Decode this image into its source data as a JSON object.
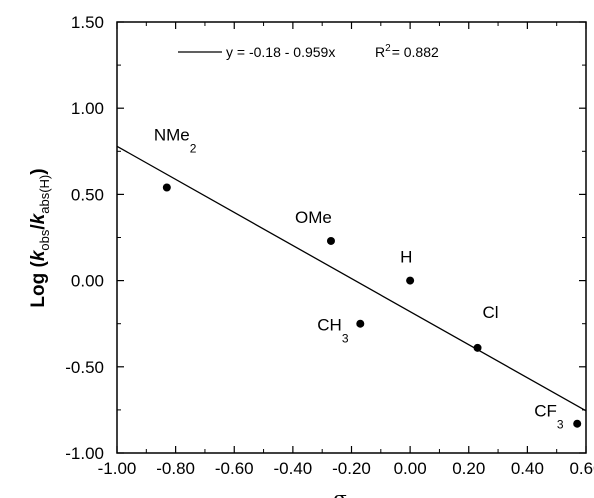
{
  "chart_data": {
    "type": "scatter",
    "title": "",
    "xlabel": "σ",
    "ylabel": "Log (k obs /k abs(H) )",
    "ylabel_parts": {
      "prefix": "Log (",
      "k1": "k",
      "sub1": "obs",
      "slash": "/",
      "k2": "k",
      "sub2": "abs(H)",
      "suffix": ")"
    },
    "xlim": [
      -1.0,
      0.6
    ],
    "ylim": [
      -1.0,
      1.5
    ],
    "x_ticks": [
      -1.0,
      -0.8,
      -0.6,
      -0.4,
      -0.2,
      0.0,
      0.2,
      0.4,
      0.6
    ],
    "x_tick_labels": [
      "-1.00",
      "-0.80",
      "-0.60",
      "-0.40",
      "-0.20",
      "0.00",
      "0.20",
      "0.40",
      "0.60"
    ],
    "y_ticks": [
      -1.0,
      -0.5,
      0.0,
      0.5,
      1.0,
      1.5
    ],
    "y_tick_labels": [
      "-1.00",
      "-0.50",
      "0.00",
      "0.50",
      "1.00",
      "1.50"
    ],
    "grid": false,
    "points": [
      {
        "label": "NMe",
        "sub": "2",
        "x": -0.83,
        "y": 0.54
      },
      {
        "label": "OMe",
        "sub": "",
        "x": -0.27,
        "y": 0.23
      },
      {
        "label": "H",
        "sub": "",
        "x": 0.0,
        "y": 0.0
      },
      {
        "label": "CH",
        "sub": "3",
        "x": -0.17,
        "y": -0.25
      },
      {
        "label": "Cl",
        "sub": "",
        "x": 0.23,
        "y": -0.39
      },
      {
        "label": "CF",
        "sub": "3",
        "x": 0.57,
        "y": -0.83
      }
    ],
    "fit": {
      "intercept": -0.18,
      "slope": -0.959,
      "equation": "y = -0.18 - 0.959x",
      "r2_label": "R",
      "r2_sup": "2",
      "r2_value": "= 0.882"
    },
    "legend_position": "top-center"
  }
}
